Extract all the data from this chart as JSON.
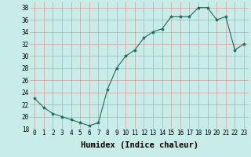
{
  "x": [
    0,
    1,
    2,
    3,
    4,
    5,
    6,
    7,
    8,
    9,
    10,
    11,
    12,
    13,
    14,
    15,
    16,
    17,
    18,
    19,
    20,
    21,
    22,
    23
  ],
  "y": [
    23,
    21.5,
    20.5,
    20,
    19.5,
    19,
    18.5,
    19,
    24.5,
    28,
    30,
    31,
    33,
    34,
    34.5,
    36.5,
    36.5,
    36.5,
    38,
    38,
    36,
    36.5,
    31,
    32
  ],
  "line_color": "#1a6b5a",
  "marker": "*",
  "marker_size": 3,
  "bg_color": "#c8ece8",
  "grid_color": "#d4a0a0",
  "xlabel": "Humidex (Indice chaleur)",
  "xlabel_fontsize": 7.5,
  "xlim": [
    -0.5,
    23.5
  ],
  "ylim": [
    18,
    39
  ],
  "yticks": [
    18,
    20,
    22,
    24,
    26,
    28,
    30,
    32,
    34,
    36,
    38
  ],
  "xticks": [
    0,
    1,
    2,
    3,
    4,
    5,
    6,
    7,
    8,
    9,
    10,
    11,
    12,
    13,
    14,
    15,
    16,
    17,
    18,
    19,
    20,
    21,
    22,
    23
  ],
  "tick_fontsize": 5.5
}
